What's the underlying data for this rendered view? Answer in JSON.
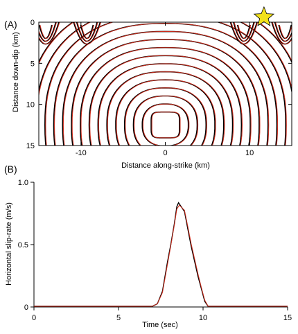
{
  "chart_data": [
    {
      "panel_label": "(A)",
      "type": "contour",
      "xlabel": "Distance along-strike (km)",
      "ylabel": "Distance down-dip (km)",
      "xlim": [
        -15,
        15
      ],
      "ylim": [
        15,
        0
      ],
      "x_ticks": [
        -10,
        0,
        10
      ],
      "y_ticks": [
        0,
        5,
        10,
        15
      ],
      "center": [
        0,
        12.5
      ],
      "contour_times": [
        1,
        2,
        3,
        4,
        5,
        6,
        7,
        8,
        9,
        10,
        11,
        12,
        13,
        14,
        15
      ],
      "secondary_fronts": [
        {
          "x": -14.2,
          "y": 1.6
        },
        {
          "x": -9.3,
          "y": 1.6
        },
        {
          "x": 9.3,
          "y": 1.6
        },
        {
          "x": 14.2,
          "y": 1.6
        }
      ],
      "hypocenter": {
        "x": 11.7,
        "y": -0.6,
        "marker": "star",
        "color": "#f2e11b"
      },
      "series": [
        {
          "color": "#000000"
        },
        {
          "color": "#cc2a1a"
        }
      ]
    },
    {
      "panel_label": "(B)",
      "type": "line",
      "xlabel": "Time (sec)",
      "ylabel": "Horizontal slip-rate (m/s)",
      "xlim": [
        0,
        15
      ],
      "ylim": [
        0,
        1.0
      ],
      "x_ticks": [
        0,
        5,
        10,
        15
      ],
      "y_ticks": [
        0,
        0.5,
        1.0
      ],
      "y_tick_labels": [
        "0",
        "0.5",
        "1.0"
      ],
      "series": [
        {
          "color": "#000000",
          "x": [
            0,
            7.0,
            7.3,
            7.6,
            7.9,
            8.1,
            8.3,
            8.45,
            8.55,
            8.7,
            8.9,
            9.1,
            9.3,
            9.5,
            9.7,
            9.9,
            10.1,
            10.3,
            15
          ],
          "y": [
            0,
            0,
            0.02,
            0.12,
            0.36,
            0.5,
            0.66,
            0.8,
            0.83,
            0.8,
            0.76,
            0.62,
            0.48,
            0.36,
            0.24,
            0.14,
            0.04,
            0,
            0
          ]
        },
        {
          "color": "#cc2a1a",
          "x": [
            0,
            7.0,
            7.3,
            7.6,
            7.9,
            8.1,
            8.3,
            8.45,
            8.6,
            8.75,
            8.9,
            9.1,
            9.3,
            9.5,
            9.7,
            9.9,
            10.1,
            10.3,
            15
          ],
          "y": [
            0,
            0,
            0.02,
            0.11,
            0.34,
            0.49,
            0.65,
            0.78,
            0.81,
            0.79,
            0.77,
            0.64,
            0.5,
            0.38,
            0.26,
            0.15,
            0.05,
            0,
            0
          ]
        }
      ]
    }
  ]
}
